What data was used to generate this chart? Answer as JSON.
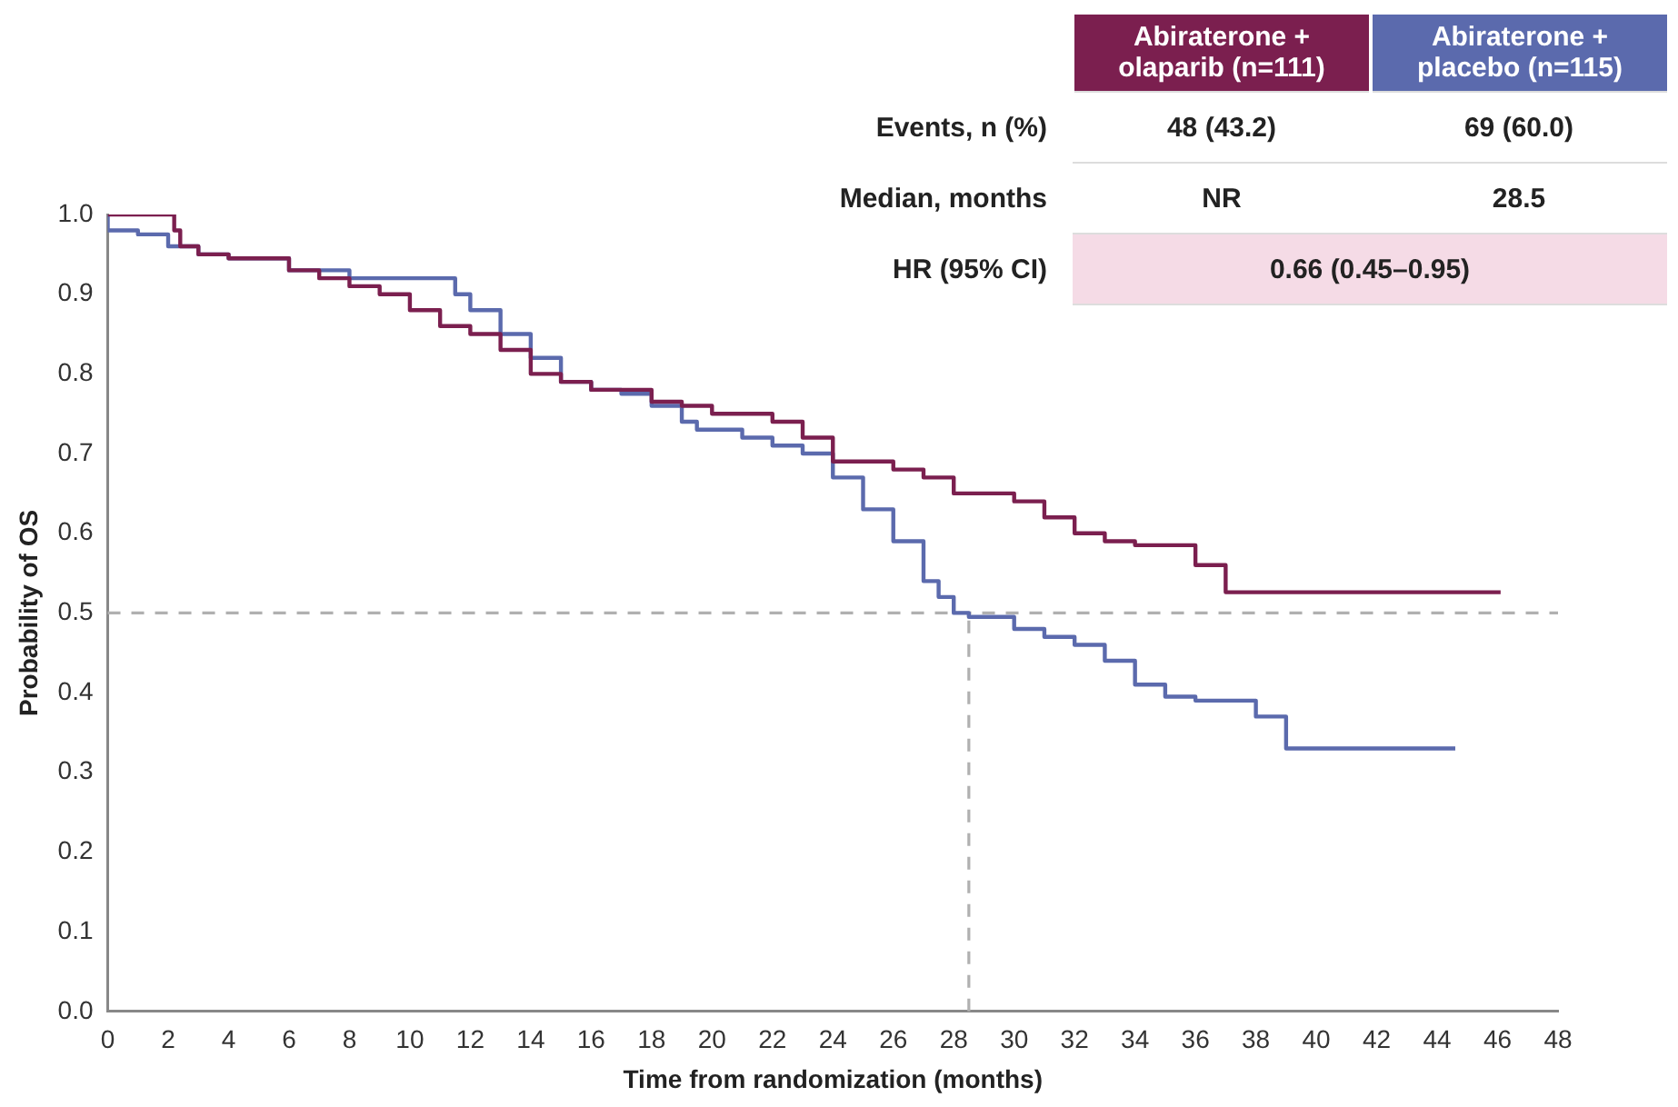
{
  "chart_data": {
    "type": "step",
    "xlabel": "Time from randomization (months)",
    "ylabel": "Probability of OS",
    "xlim": [
      0,
      48
    ],
    "xticks": [
      0,
      2,
      4,
      6,
      8,
      10,
      12,
      14,
      16,
      18,
      20,
      22,
      24,
      26,
      28,
      30,
      32,
      34,
      36,
      38,
      40,
      42,
      44,
      46,
      48
    ],
    "ylim": [
      0,
      1
    ],
    "yticks": [
      {
        "value": 0,
        "label": "0.0"
      },
      {
        "value": 0.1,
        "label": "0.1"
      },
      {
        "value": 0.2,
        "label": "0.2"
      },
      {
        "value": 0.3,
        "label": "0.3"
      },
      {
        "value": 0.4,
        "label": "0.4"
      },
      {
        "value": 0.5,
        "label": "0.5"
      },
      {
        "value": 0.6,
        "label": "0.6"
      },
      {
        "value": 0.7,
        "label": "0.7"
      },
      {
        "value": 0.8,
        "label": "0.8"
      },
      {
        "value": 0.9,
        "label": "0.9"
      },
      {
        "value": 1,
        "label": "1.0"
      }
    ],
    "grid": false,
    "legend": "top right",
    "marker": "none",
    "line_style": "solid",
    "series": [
      {
        "name": "Abiraterone + olaparib (n=111)",
        "color": "#7b1f4f",
        "x": [
          0,
          2.2,
          2.4,
          3,
          4,
          6,
          7,
          8,
          9,
          10,
          11,
          12,
          13,
          14,
          15,
          16,
          18,
          19,
          20,
          22,
          23,
          24,
          26,
          27,
          28,
          30,
          31,
          32,
          33,
          34,
          36,
          37,
          39.1,
          46.1
        ],
        "values": [
          1,
          1,
          0.98,
          0.96,
          0.95,
          0.945,
          0.93,
          0.92,
          0.91,
          0.9,
          0.88,
          0.86,
          0.85,
          0.83,
          0.8,
          0.79,
          0.78,
          0.765,
          0.76,
          0.75,
          0.74,
          0.72,
          0.69,
          0.68,
          0.67,
          0.65,
          0.64,
          0.62,
          0.6,
          0.59,
          0.585,
          0.56,
          0.526,
          0.526
        ]
      },
      {
        "name": "Abiraterone + placebo (n=115)",
        "color": "#5b6aad",
        "x": [
          0,
          1,
          2,
          3,
          4,
          6,
          8,
          11.5,
          12,
          13,
          14,
          15,
          16,
          17,
          18,
          19,
          19.5,
          21,
          22,
          23,
          24,
          25,
          26,
          27,
          27.5,
          28,
          28.5,
          30,
          31,
          32,
          33,
          34,
          35,
          36,
          38,
          39,
          39.4,
          44.6
        ],
        "values": [
          1,
          0.98,
          0.975,
          0.96,
          0.95,
          0.945,
          0.93,
          0.92,
          0.9,
          0.88,
          0.85,
          0.82,
          0.79,
          0.78,
          0.775,
          0.76,
          0.74,
          0.73,
          0.72,
          0.71,
          0.7,
          0.67,
          0.63,
          0.59,
          0.54,
          0.52,
          0.5,
          0.495,
          0.48,
          0.47,
          0.46,
          0.44,
          0.41,
          0.395,
          0.39,
          0.37,
          0.33,
          0.33
        ]
      }
    ],
    "ref_lines": [
      {
        "axis": "y",
        "value": 0.5,
        "color": "#b0b0b0",
        "line_style": "dashed"
      },
      {
        "axis": "x",
        "value": 28.5,
        "color": "#b0b0b0",
        "line_style": "dashed"
      }
    ],
    "annotations": [
      "Events, n (%)",
      "48 (43.2)",
      "69 (60.0)",
      "Median, months",
      "NR",
      "28.5",
      "HR (95% CI)",
      "0.66 (0.45–0.95)"
    ]
  }
}
